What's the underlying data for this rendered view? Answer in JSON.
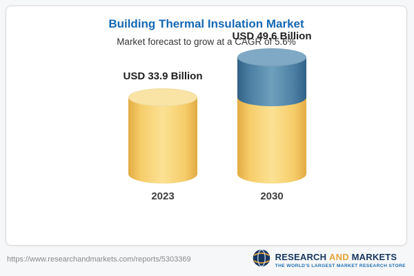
{
  "card": {
    "title": "Building Thermal Insulation Market",
    "subtitle": "Market forecast to grow at a CAGR of 5.6%"
  },
  "chart_data": {
    "type": "bar",
    "style": "3d-cylinder",
    "title": "Building Thermal Insulation Market",
    "subtitle": "Market forecast to grow at a CAGR of 5.6%",
    "unit": "USD Billion",
    "categories": [
      "2023",
      "2030"
    ],
    "values": [
      33.9,
      49.6
    ],
    "value_labels": [
      "USD 33.9 Billion",
      "USD 49.6 Billion"
    ],
    "cagr_percent": 5.6,
    "colors": {
      "base_segment": "#f6cd6a",
      "growth_segment": "#4c7fa3"
    },
    "layout_hint": "2030 cylinder stacks the 2023 base (gold) with the incremental growth segment (blue) on top; no axes or gridlines"
  },
  "footer": {
    "url": "https://www.researchandmarkets.com/reports/5303369",
    "logo": {
      "word_research": "RESEARCH",
      "word_and": "AND",
      "word_markets": "MARKETS",
      "tagline": "THE WORLD'S LARGEST MARKET RESEARCH STORE",
      "navy": "#16355e",
      "gold": "#e9a63a"
    }
  }
}
